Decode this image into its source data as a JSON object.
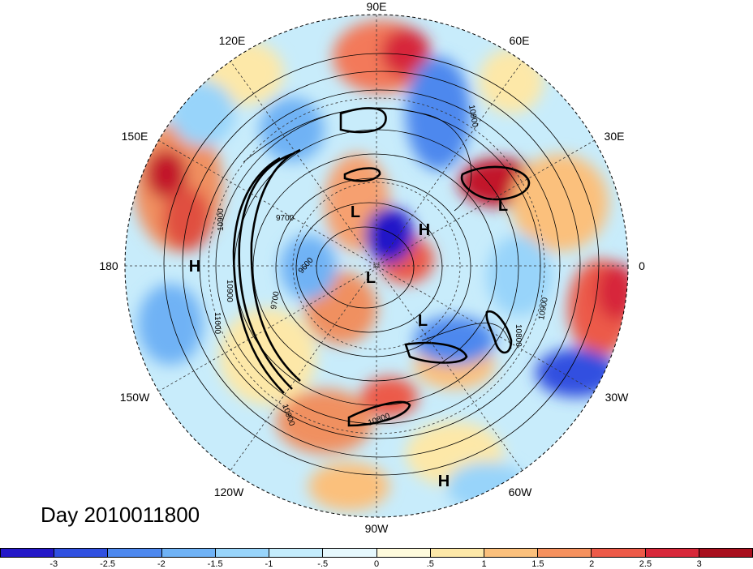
{
  "title": "Day 2010011800",
  "lon_labels": {
    "n90": "90E",
    "e120": "120E",
    "e60": "60E",
    "e150": "150E",
    "e30": "30E",
    "w180": "180",
    "e0": "0",
    "w150": "150W",
    "w30": "30W",
    "w120": "120W",
    "w60": "60W",
    "w90": "90W"
  },
  "pressure_centers": [
    {
      "label": "H"
    },
    {
      "label": "L"
    },
    {
      "label": "L"
    },
    {
      "label": "H"
    },
    {
      "label": "L"
    },
    {
      "label": "L"
    },
    {
      "label": "H"
    }
  ],
  "contour_labels": [
    "10900",
    "10900",
    "9700",
    "9600",
    "9700",
    "11000",
    "10900",
    "10800",
    "10900",
    "10800",
    "10900"
  ],
  "colorbar": {
    "colors": [
      "#2418c8",
      "#3050e0",
      "#4d88ee",
      "#6fb2f5",
      "#98d4fa",
      "#c4ecfc",
      "#e6f8fd",
      "#fefadc",
      "#fde8a8",
      "#fbc07c",
      "#f5915e",
      "#ec5a48",
      "#d7283a",
      "#a8101e"
    ],
    "ticks": [
      "-3",
      "-2.5",
      "-2",
      "-1.5",
      "-1",
      "-.5",
      "0",
      ".5",
      "1",
      "1.5",
      "2",
      "2.5",
      "3"
    ]
  }
}
